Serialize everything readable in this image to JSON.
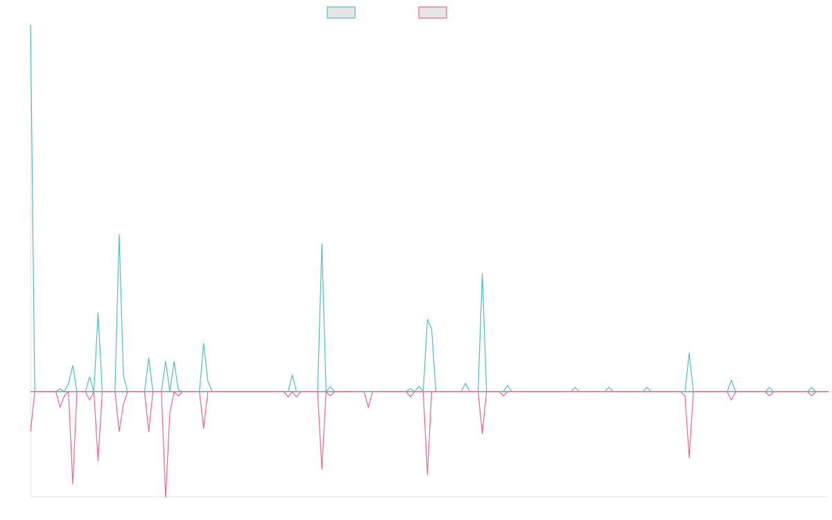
{
  "chart_data": {
    "type": "line",
    "title": "",
    "xlabel": "",
    "ylabel": "",
    "x_count": 190,
    "ylim": [
      -100,
      350
    ],
    "grid": false,
    "legend_placement": "top-center",
    "series": [
      {
        "name": "",
        "color": "#4bc0c0",
        "points": [
          [
            0,
            350
          ],
          [
            1,
            0
          ],
          [
            7,
            3
          ],
          [
            8,
            0
          ],
          [
            9,
            8
          ],
          [
            10,
            25
          ],
          [
            11,
            0
          ],
          [
            14,
            14
          ],
          [
            15,
            0
          ],
          [
            16,
            75
          ],
          [
            17,
            0
          ],
          [
            21,
            150
          ],
          [
            22,
            15
          ],
          [
            23,
            0
          ],
          [
            28,
            32
          ],
          [
            29,
            0
          ],
          [
            32,
            29
          ],
          [
            33,
            0
          ],
          [
            34,
            29
          ],
          [
            35,
            2
          ],
          [
            36,
            0
          ],
          [
            41,
            46
          ],
          [
            42,
            10
          ],
          [
            43,
            0
          ],
          [
            62,
            16
          ],
          [
            63,
            0
          ],
          [
            69,
            141
          ],
          [
            70,
            0
          ],
          [
            71,
            5
          ],
          [
            72,
            0
          ],
          [
            90,
            3
          ],
          [
            91,
            0
          ],
          [
            92,
            5
          ],
          [
            93,
            0
          ],
          [
            94,
            69
          ],
          [
            95,
            60
          ],
          [
            96,
            0
          ],
          [
            103,
            8
          ],
          [
            104,
            0
          ],
          [
            107,
            113
          ],
          [
            108,
            0
          ],
          [
            113,
            6
          ],
          [
            114,
            0
          ],
          [
            129,
            4
          ],
          [
            130,
            0
          ],
          [
            137,
            4
          ],
          [
            138,
            0
          ],
          [
            146,
            4
          ],
          [
            147,
            0
          ],
          [
            156,
            37
          ],
          [
            157,
            0
          ],
          [
            166,
            11
          ],
          [
            167,
            0
          ],
          [
            175,
            4
          ],
          [
            176,
            0
          ],
          [
            185,
            4
          ],
          [
            186,
            0
          ]
        ]
      },
      {
        "name": "",
        "color": "#f0638c",
        "points": [
          [
            0,
            -38
          ],
          [
            1,
            0
          ],
          [
            6,
            0
          ],
          [
            7,
            -15
          ],
          [
            8,
            -4
          ],
          [
            9,
            0
          ],
          [
            10,
            -88
          ],
          [
            11,
            0
          ],
          [
            13,
            0
          ],
          [
            14,
            -8
          ],
          [
            15,
            0
          ],
          [
            16,
            -66
          ],
          [
            17,
            0
          ],
          [
            21,
            -38
          ],
          [
            22,
            -12
          ],
          [
            23,
            0
          ],
          [
            28,
            -38
          ],
          [
            29,
            0
          ],
          [
            32,
            -101
          ],
          [
            33,
            -20
          ],
          [
            34,
            0
          ],
          [
            35,
            -4
          ],
          [
            36,
            0
          ],
          [
            41,
            -35
          ],
          [
            42,
            0
          ],
          [
            61,
            -5
          ],
          [
            62,
            0
          ],
          [
            63,
            -5
          ],
          [
            64,
            0
          ],
          [
            69,
            -74
          ],
          [
            70,
            0
          ],
          [
            71,
            -4
          ],
          [
            72,
            0
          ],
          [
            80,
            -15
          ],
          [
            81,
            0
          ],
          [
            90,
            -5
          ],
          [
            91,
            0
          ],
          [
            94,
            -79
          ],
          [
            95,
            0
          ],
          [
            106,
            0
          ],
          [
            107,
            -40
          ],
          [
            108,
            0
          ],
          [
            112,
            -4
          ],
          [
            113,
            0
          ],
          [
            155,
            -4
          ],
          [
            156,
            -63
          ],
          [
            157,
            0
          ],
          [
            166,
            -8
          ],
          [
            167,
            0
          ],
          [
            175,
            -4
          ],
          [
            176,
            0
          ],
          [
            185,
            -4
          ],
          [
            186,
            0
          ]
        ]
      }
    ]
  }
}
